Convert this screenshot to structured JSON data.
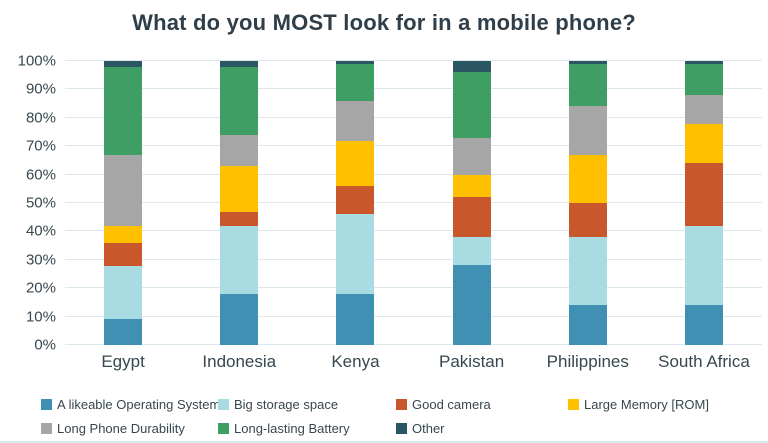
{
  "title": "What do you MOST look for in a mobile phone?",
  "chart_data": {
    "type": "bar",
    "stacked": true,
    "title": "What do you MOST look for in a mobile phone?",
    "xlabel": "",
    "ylabel": "",
    "ylim": [
      0,
      100
    ],
    "grid": true,
    "legend_position": "bottom",
    "y_ticks": [
      "0%",
      "10%",
      "20%",
      "30%",
      "40%",
      "50%",
      "60%",
      "70%",
      "80%",
      "90%",
      "100%"
    ],
    "categories": [
      "Egypt",
      "Indonesia",
      "Kenya",
      "Pakistan",
      "Philippines",
      "South Africa"
    ],
    "series": [
      {
        "name": "A likeable Operating System",
        "color": "#4090b4",
        "values": [
          9,
          18,
          18,
          28,
          14,
          14
        ]
      },
      {
        "name": "Big storage space",
        "color": "#a9dbe3",
        "values": [
          19,
          24,
          28,
          10,
          24,
          28
        ]
      },
      {
        "name": "Good camera",
        "color": "#c9572c",
        "values": [
          8,
          5,
          10,
          14,
          12,
          22
        ]
      },
      {
        "name": "Large Memory [ROM]",
        "color": "#ffc000",
        "values": [
          6,
          16,
          16,
          8,
          17,
          14
        ]
      },
      {
        "name": "Long Phone Durability",
        "color": "#a6a6a6",
        "values": [
          25,
          11,
          14,
          13,
          17,
          10
        ]
      },
      {
        "name": "Long-lasting Battery",
        "color": "#3f9e63",
        "values": [
          31,
          24,
          13,
          23,
          15,
          11
        ]
      },
      {
        "name": "Other",
        "color": "#2a5562",
        "values": [
          2,
          2,
          1,
          4,
          1,
          1
        ]
      }
    ]
  },
  "colors": {
    "title_text": "#2f3e49",
    "axis_text": "#37474f",
    "gridline": "#dce7ee",
    "background": "#ffffff"
  }
}
